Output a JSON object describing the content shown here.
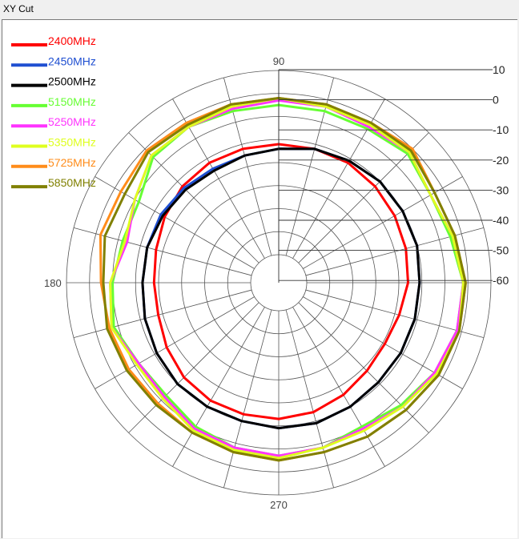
{
  "window": {
    "title": "XY Cut"
  },
  "chart_data": {
    "type": "polar",
    "title": "",
    "r_axis": {
      "ticks": [
        10,
        0,
        -10,
        -20,
        -30,
        -40,
        -50,
        -60
      ],
      "min": -70,
      "max": 10
    },
    "angle_labels": [
      "90",
      "180",
      "270"
    ],
    "grid": true,
    "legend": "top-left",
    "angles": [
      0,
      15,
      30,
      45,
      60,
      75,
      90,
      105,
      120,
      135,
      150,
      165,
      180,
      195,
      210,
      225,
      240,
      255,
      270,
      285,
      300,
      315,
      330,
      345
    ],
    "series": [
      {
        "name": "2400MHz",
        "color": "#ff0000",
        "values": [
          -26,
          -25,
          -24,
          -23,
          -22,
          -22,
          -22,
          -22,
          -22,
          -23,
          -25,
          -27,
          -28,
          -28,
          -26,
          -24,
          -23,
          -23,
          -23,
          -24,
          -26,
          -28,
          -29,
          -28
        ]
      },
      {
        "name": "2450MHz",
        "color": "#1f4fd1",
        "values": [
          -21,
          -20,
          -20,
          -20,
          -21,
          -22,
          -24,
          -25,
          -25,
          -24,
          -23,
          -23,
          -23,
          -22,
          -21,
          -20,
          -20,
          -20,
          -19,
          -19,
          -20,
          -21,
          -21,
          -21
        ]
      },
      {
        "name": "2500MHz",
        "color": "#000000",
        "values": [
          -21,
          -20,
          -20,
          -20,
          -21,
          -22,
          -24,
          -25,
          -26,
          -25,
          -24,
          -23,
          -23,
          -22,
          -21,
          -20,
          -20,
          -20,
          -19,
          -19,
          -20,
          -21,
          -21,
          -21
        ]
      },
      {
        "name": "5150MHz",
        "color": "#66ff33",
        "values": [
          -2,
          -5,
          -6,
          -3,
          -5,
          -5,
          -5,
          -5,
          -4,
          -5,
          -12,
          -12,
          -10,
          -8,
          -12,
          -13,
          -10,
          -8,
          -7,
          -8,
          -10,
          -7,
          -4,
          -2
        ]
      },
      {
        "name": "5250MHz",
        "color": "#ff33ff",
        "values": [
          -2,
          -4,
          -6,
          -2,
          -4,
          -3,
          -3,
          -4,
          -4,
          -4,
          -10,
          -14,
          -9,
          -7,
          -12,
          -12,
          -9,
          -8,
          -7,
          -8,
          -9,
          -6,
          -4,
          -2
        ]
      },
      {
        "name": "5350MHz",
        "color": "#dfff1f",
        "values": [
          -2,
          -4,
          -6,
          -2,
          -3,
          -3,
          -2,
          -3,
          -4,
          -4,
          -10,
          -13,
          -9,
          -7,
          -11,
          -11,
          -8,
          -7,
          -6,
          -8,
          -8,
          -6,
          -3,
          -1
        ]
      },
      {
        "name": "5725MHz",
        "color": "#ff8c1a",
        "values": [
          -1,
          -3,
          -4,
          0,
          -2,
          -2,
          -2,
          -2,
          -2,
          -1,
          -3,
          -2,
          -5,
          -6,
          -7,
          -8,
          -7,
          -6,
          -5,
          -6,
          -5,
          -4,
          -2,
          -1
        ]
      },
      {
        "name": "5850MHz",
        "color": "#808000",
        "values": [
          -1,
          -3,
          -4,
          -1,
          -2,
          -2,
          -2,
          -2,
          -3,
          -2,
          -5,
          -4,
          -6,
          -5,
          -6,
          -7,
          -7,
          -6,
          -5,
          -6,
          -5,
          -4,
          -2,
          -1
        ]
      }
    ]
  }
}
